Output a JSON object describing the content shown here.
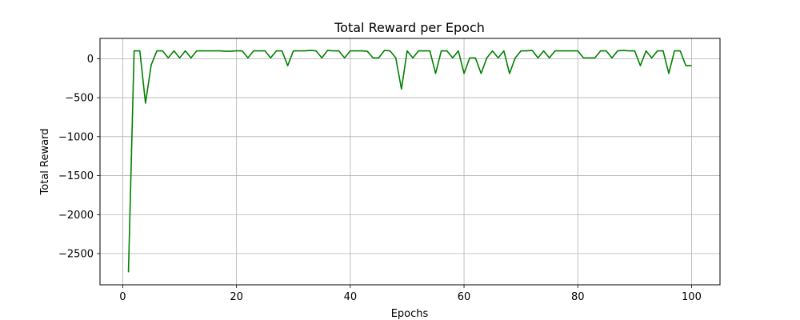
{
  "chart_data": {
    "type": "line",
    "title": "Total Reward per Epoch",
    "xlabel": "Epochs",
    "ylabel": "Total Reward",
    "xlim": [
      -4,
      105
    ],
    "ylim": [
      -2900,
      260
    ],
    "xticks": [
      0,
      20,
      40,
      60,
      80,
      100
    ],
    "yticks": [
      0,
      -500,
      -1000,
      -1500,
      -2000,
      -2500
    ],
    "xtick_labels": [
      "0",
      "20",
      "40",
      "60",
      "80",
      "100"
    ],
    "ytick_labels": [
      "0",
      "−500",
      "−1000",
      "−1500",
      "−2000",
      "−2500"
    ],
    "grid": true,
    "line_color": "#008000",
    "series": [
      {
        "x": [
          1,
          2,
          3,
          4,
          5,
          6,
          7,
          8,
          9,
          10,
          11,
          12,
          13,
          14,
          15,
          16,
          17,
          18,
          19,
          20,
          21,
          22,
          23,
          24,
          25,
          26,
          27,
          28,
          29,
          30,
          31,
          32,
          33,
          34,
          35,
          36,
          37,
          38,
          39,
          40,
          41,
          42,
          43,
          44,
          45,
          46,
          47,
          48,
          49,
          50,
          51,
          52,
          53,
          54,
          55,
          56,
          57,
          58,
          59,
          60,
          61,
          62,
          63,
          64,
          65,
          66,
          67,
          68,
          69,
          70,
          71,
          72,
          73,
          74,
          75,
          76,
          77,
          78,
          79,
          80,
          81,
          82,
          83,
          84,
          85,
          86,
          87,
          88,
          89,
          90,
          91,
          92,
          93,
          94,
          95,
          96,
          97,
          98,
          99,
          100
        ],
        "values": [
          -2740,
          100,
          100,
          -570,
          -80,
          100,
          100,
          10,
          100,
          10,
          100,
          10,
          100,
          100,
          100,
          100,
          100,
          95,
          95,
          100,
          100,
          10,
          100,
          100,
          100,
          10,
          100,
          100,
          -90,
          100,
          100,
          100,
          105,
          100,
          10,
          105,
          100,
          100,
          10,
          100,
          100,
          100,
          95,
          10,
          10,
          105,
          100,
          10,
          -390,
          100,
          10,
          100,
          100,
          100,
          -190,
          100,
          100,
          10,
          100,
          -190,
          10,
          10,
          -190,
          10,
          100,
          10,
          100,
          -190,
          10,
          100,
          100,
          105,
          10,
          100,
          10,
          100,
          100,
          100,
          100,
          100,
          10,
          10,
          10,
          100,
          100,
          10,
          100,
          105,
          100,
          100,
          -90,
          100,
          10,
          100,
          100,
          -190,
          100,
          100,
          -90,
          -90
        ]
      }
    ]
  }
}
